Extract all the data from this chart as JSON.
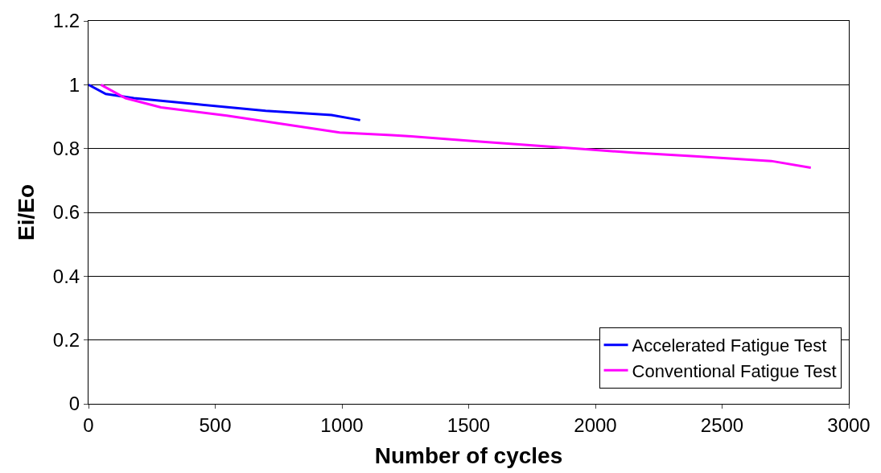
{
  "chart_data": {
    "type": "line",
    "xlabel": "Number of cycles",
    "ylabel": "Ei/Eo",
    "xlim": [
      0,
      3000
    ],
    "xticks": [
      0,
      500,
      1000,
      1500,
      2000,
      2500,
      3000
    ],
    "ylim": [
      0,
      1.2
    ],
    "yticks": [
      0,
      0.2,
      0.4,
      0.6,
      0.8,
      1,
      1.2
    ],
    "grid": "y",
    "legend": "bottom right",
    "marker": "none",
    "line_style": "solid",
    "series": [
      {
        "name": "Accelerated Fatigue Test",
        "color": "#0000ff",
        "x": [
          0,
          68,
          179,
          426,
          699,
          959,
          1072
        ],
        "values": [
          1.0,
          0.971,
          0.958,
          0.939,
          0.918,
          0.905,
          0.889
        ]
      },
      {
        "name": "Conventional Fatigue Test",
        "color": "#ff00ff",
        "x": [
          49,
          146,
          286,
          546,
          774,
          991,
          1196,
          1261,
          1544,
          1940,
          2148,
          2392,
          2694,
          2850
        ],
        "values": [
          1.0,
          0.958,
          0.929,
          0.903,
          0.876,
          0.85,
          0.842,
          0.839,
          0.822,
          0.799,
          0.787,
          0.776,
          0.761,
          0.74
        ]
      }
    ]
  }
}
